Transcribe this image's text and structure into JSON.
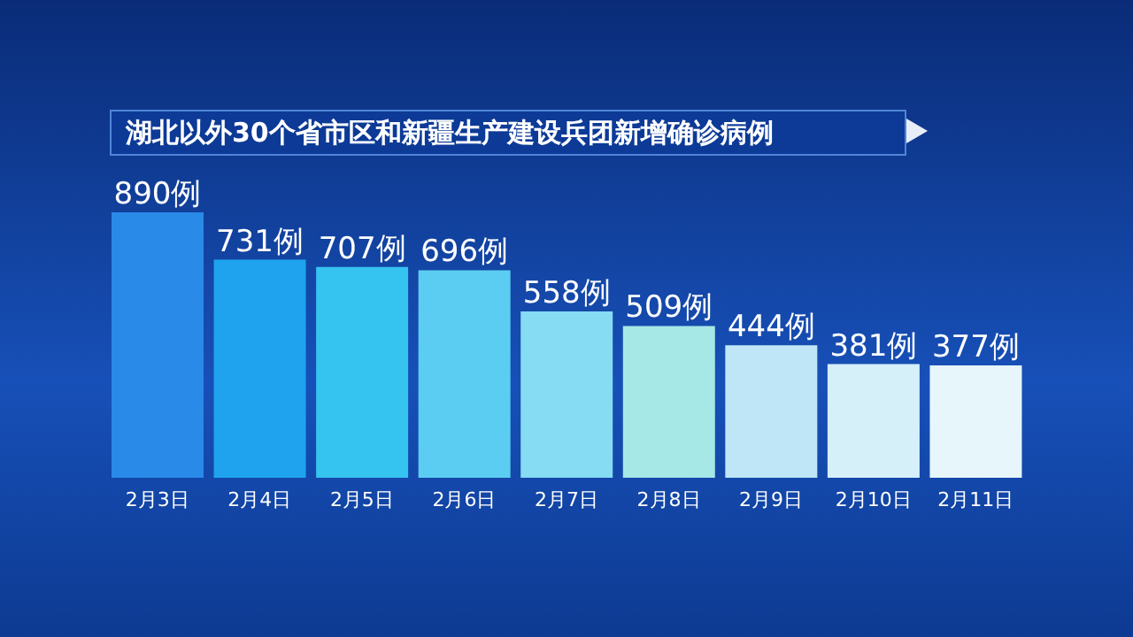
{
  "chart_data": {
    "type": "bar",
    "title": "湖北以外30个省市区和新疆生产建设兵团新增确诊病例",
    "categories": [
      "2月3日",
      "2月4日",
      "2月5日",
      "2月6日",
      "2月7日",
      "2月8日",
      "2月9日",
      "2月10日",
      "2月11日"
    ],
    "values": [
      890,
      731,
      707,
      696,
      558,
      509,
      444,
      381,
      377
    ],
    "colors": [
      "#2a8ae8",
      "#1fa3ee",
      "#35c3f0",
      "#5ccdf2",
      "#86dcf2",
      "#a6e8e6",
      "#bfe6f6",
      "#d6f0fa",
      "#e6f6fb"
    ],
    "value_labels": [
      "890例",
      "731例",
      "707例",
      "696例",
      "558例",
      "509例",
      "444例",
      "381例",
      "377例"
    ]
  }
}
